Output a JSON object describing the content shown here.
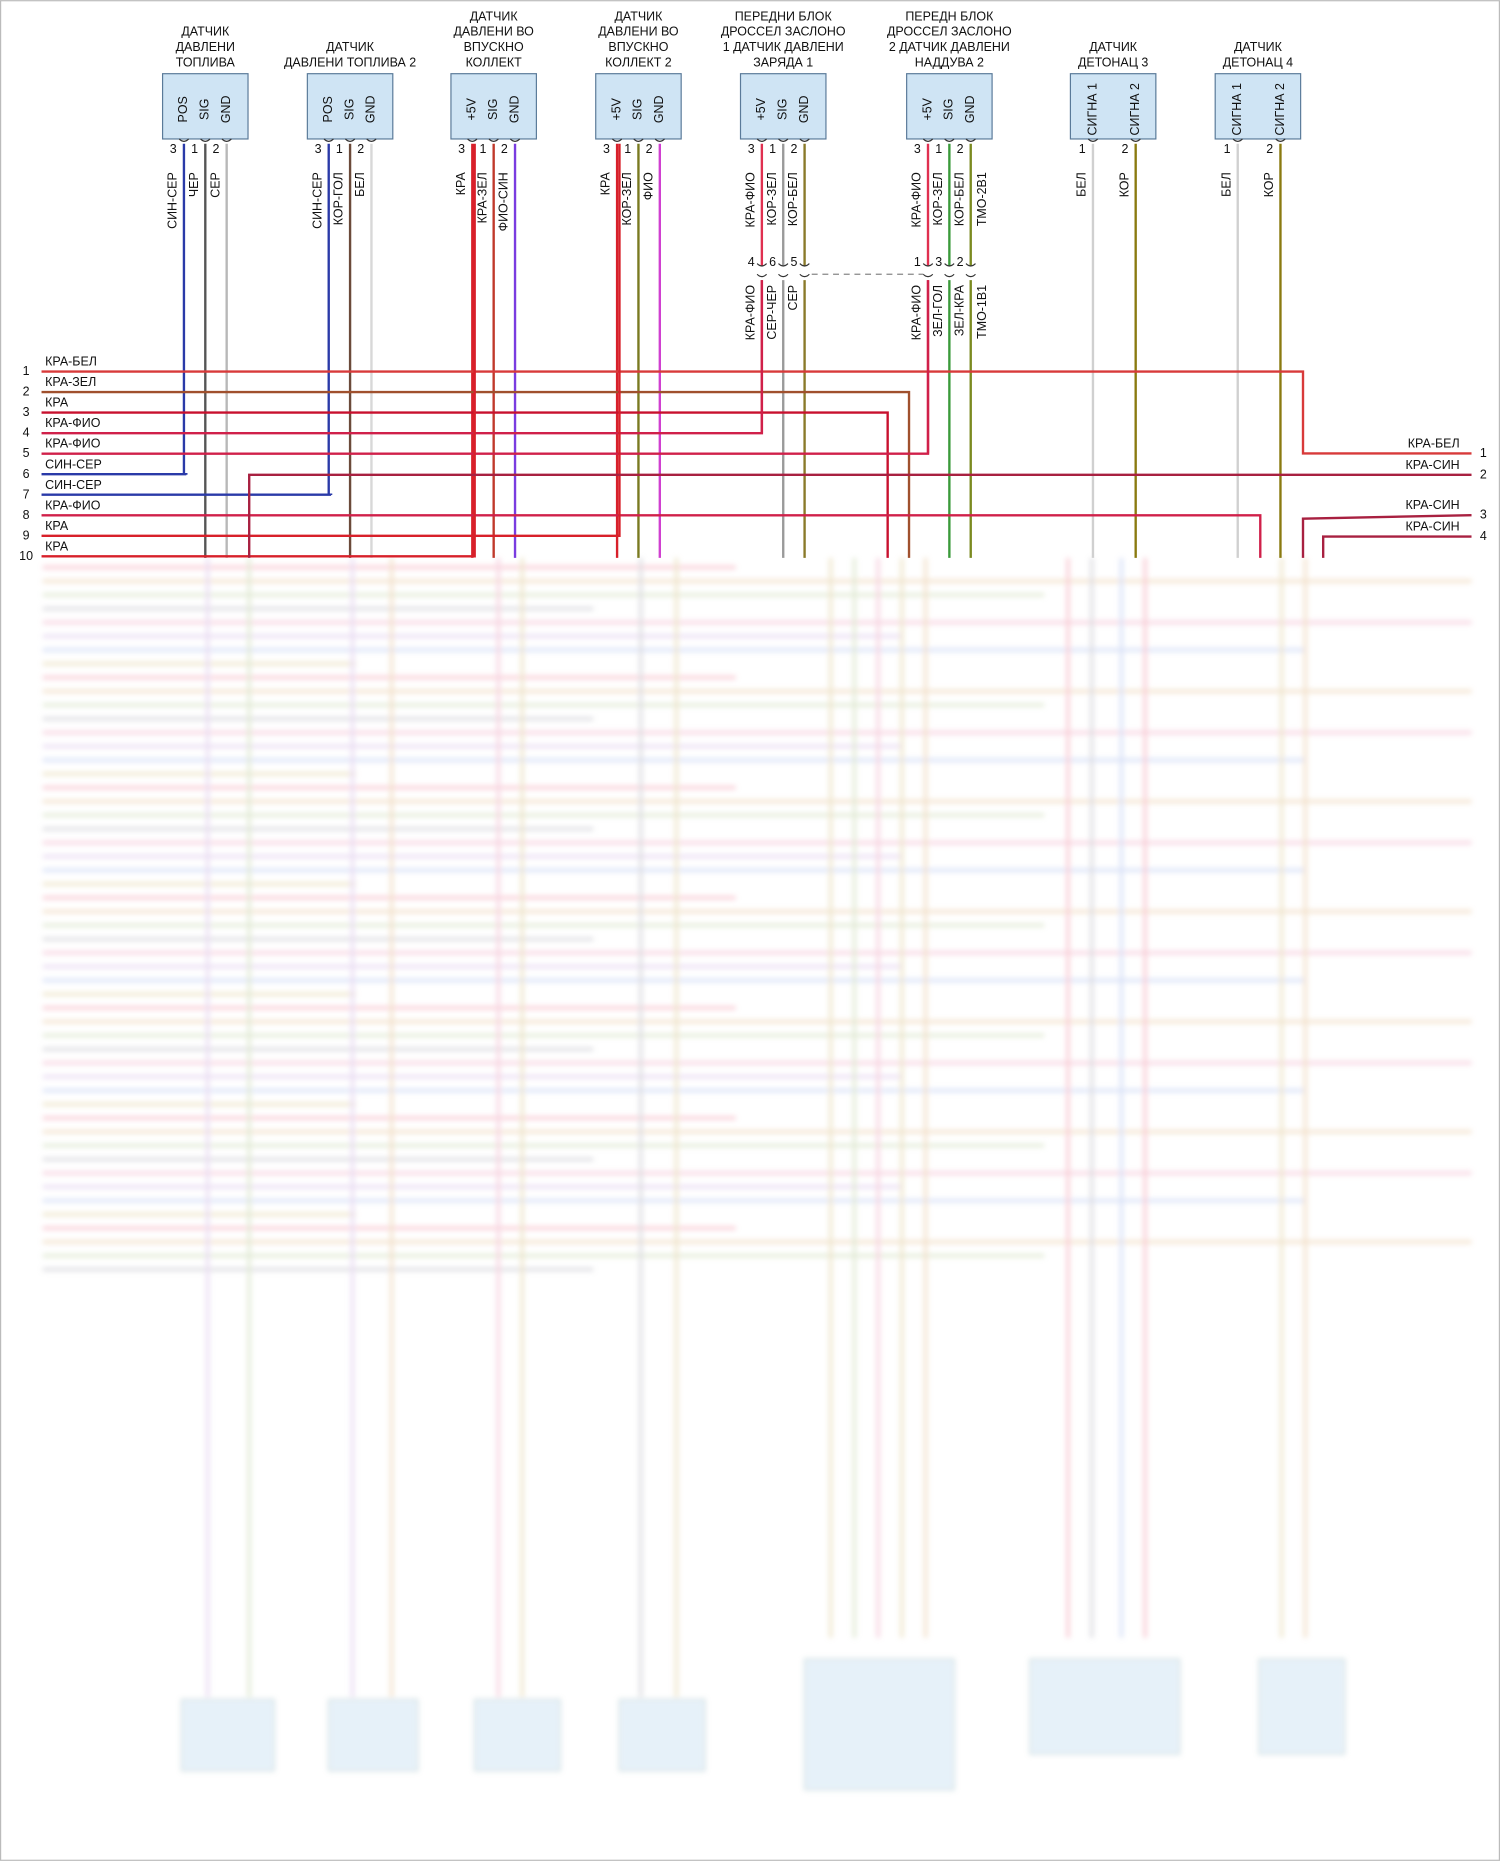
{
  "sensors": [
    {
      "title_lines": [
        "ДАТЧИК",
        "ДАВЛЕНИ",
        "ТОПЛИВА"
      ],
      "pins": [
        {
          "name": "POS",
          "number": 3,
          "wire": "СИН-СЕР",
          "color": "#2a3aa8"
        },
        {
          "name": "SIG",
          "number": 1,
          "wire": "ЧЕР",
          "color": "#555555"
        },
        {
          "name": "GND",
          "number": 2,
          "wire": "СЕР",
          "color": "#b8b8b8"
        }
      ]
    },
    {
      "title_lines": [
        "ДАТЧИК",
        "ДАВЛЕНИ ТОПЛИВА 2"
      ],
      "pins": [
        {
          "name": "POS",
          "number": 3,
          "wire": "СИН-СЕР",
          "color": "#2a3aa8"
        },
        {
          "name": "SIG",
          "number": 1,
          "wire": "КОР-ГОЛ",
          "color": "#6b4a3a"
        },
        {
          "name": "GND",
          "number": 2,
          "wire": "БЕЛ",
          "color": "#d8d8d8"
        }
      ]
    },
    {
      "title_lines": [
        "ДАТЧИК",
        "ДАВЛЕНИ ВО",
        "ВПУСКНО",
        "КОЛЛЕКТ"
      ],
      "pins": [
        {
          "name": "+5V",
          "number": 3,
          "wire": "КРА",
          "color": "#d8202a"
        },
        {
          "name": "SIG",
          "number": 1,
          "wire": "КРА-ЗЕЛ",
          "color": "#c0392b"
        },
        {
          "name": "GND",
          "number": 2,
          "wire": "ФИО-СИН",
          "color": "#7a3ce0"
        }
      ]
    },
    {
      "title_lines": [
        "ДАТЧИК",
        "ДАВЛЕНИ ВО",
        "ВПУСКНО",
        "КОЛЛЕКТ 2"
      ],
      "pins": [
        {
          "name": "+5V",
          "number": 3,
          "wire": "КРА",
          "color": "#d8202a"
        },
        {
          "name": "SIG",
          "number": 1,
          "wire": "КОР-ЗЕЛ",
          "color": "#7a7a20"
        },
        {
          "name": "GND",
          "number": 2,
          "wire": "ФИО",
          "color": "#d040d0"
        }
      ]
    },
    {
      "title_lines": [
        "ПЕРЕДНИ БЛОК",
        "ДРОССЕЛ ЗАСЛОНО",
        "1 ДАТЧИК ДАВЛЕНИ",
        "ЗАРЯДА 1"
      ],
      "pins": [
        {
          "name": "+5V",
          "number": 3,
          "wire": "КРА-ФИО",
          "color": "#e03050"
        },
        {
          "name": "SIG",
          "number": 1,
          "wire": "КОР-ЗЕЛ",
          "color": "#9a9a9a"
        },
        {
          "name": "GND",
          "number": 2,
          "wire": "КОР-БЕЛ",
          "color": "#8a7a2a"
        }
      ]
    },
    {
      "title_lines": [
        "ПЕРЕДН БЛОК",
        "ДРОССЕЛ ЗАСЛОНО",
        "2 ДАТЧИК ДАВЛЕНИ",
        "НАДДУВА 2"
      ],
      "pins": [
        {
          "name": "+5V",
          "number": 3,
          "wire": "КРА-ФИО",
          "color": "#e03050"
        },
        {
          "name": "SIG",
          "number": 1,
          "wire": "КОР-ЗЕЛ",
          "color": "#3a9a3a"
        },
        {
          "name": "GND",
          "number": 2,
          "wire": "КОР-БЕЛ",
          "color": "#7a8a20"
        }
      ],
      "extra_wire": "ТМО-2В1"
    },
    {
      "title_lines": [
        "ДАТЧИК",
        "ДЕТОНАЦ 3"
      ],
      "pins": [
        {
          "name": "СИГНА 1",
          "number": 1,
          "wire": "БЕЛ",
          "color": "#d0d0d0"
        },
        {
          "name": "СИГНА 2",
          "number": 2,
          "wire": "КОР",
          "color": "#8a7a10"
        }
      ]
    },
    {
      "title_lines": [
        "ДАТЧИК",
        "ДЕТОНАЦ 4"
      ],
      "pins": [
        {
          "name": "СИГНА 1",
          "number": 1,
          "wire": "БЕЛ",
          "color": "#d0d0d0"
        },
        {
          "name": "СИГНА 2",
          "number": 2,
          "wire": "КОР",
          "color": "#8a7a10"
        }
      ]
    }
  ],
  "inline_connectors": [
    {
      "pins": [
        {
          "number": 4,
          "wire": "КРА-ФИО"
        },
        {
          "number": 6,
          "wire": "СЕР-ЧЕР"
        },
        {
          "number": 5,
          "wire": "СЕР"
        }
      ]
    },
    {
      "pins": [
        {
          "number": 1,
          "wire": "КРА-ФИО"
        },
        {
          "number": 3,
          "wire": "ЗЕЛ-ГОЛ"
        },
        {
          "number": 2,
          "wire": "ЗЕЛ-КРА"
        }
      ],
      "extra_wire": "ТМО-1В1"
    }
  ],
  "left_harness": [
    {
      "number": 1,
      "wire": "КРА-БЕЛ",
      "color": "#d83a3a"
    },
    {
      "number": 2,
      "wire": "КРА-ЗЕЛ",
      "color": "#a0502d"
    },
    {
      "number": 3,
      "wire": "КРА",
      "color": "#c8102e"
    },
    {
      "number": 4,
      "wire": "КРА-ФИО",
      "color": "#d0204a"
    },
    {
      "number": 5,
      "wire": "КРА-ФИО",
      "color": "#d0204a"
    },
    {
      "number": 6,
      "wire": "СИН-СЕР",
      "color": "#2a3aa8"
    },
    {
      "number": 7,
      "wire": "СИН-СЕР",
      "color": "#2a3aa8"
    },
    {
      "number": 8,
      "wire": "КРА-ФИО",
      "color": "#d0204a"
    },
    {
      "number": 9,
      "wire": "КРА",
      "color": "#d8202a"
    },
    {
      "number": 10,
      "wire": "КРА",
      "color": "#d8202a"
    }
  ],
  "right_harness": [
    {
      "number": 1,
      "wire": "КРА-БЕЛ",
      "color": "#d83a3a"
    },
    {
      "number": 2,
      "wire": "КРА-СИН",
      "color": "#a82040"
    },
    {
      "number": 3,
      "wire": "КРА-СИН",
      "color": "#a82040"
    },
    {
      "number": 4,
      "wire": "КРА-СИН",
      "color": "#a82040"
    }
  ]
}
